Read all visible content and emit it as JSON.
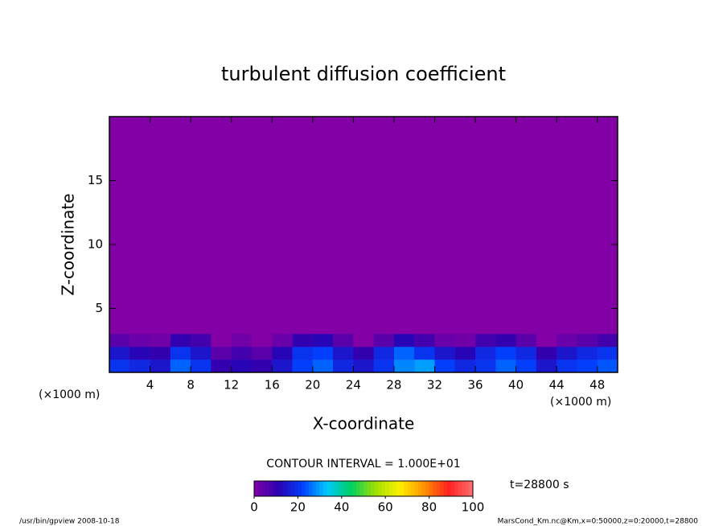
{
  "chart_data": {
    "type": "heatmap",
    "title": "turbulent diffusion coefficient",
    "xlabel": "X-coordinate",
    "ylabel": "Z-coordinate",
    "x_unit": "(×1000 m)",
    "y_unit": "(×1000 m)",
    "xlim": [
      0,
      50
    ],
    "ylim": [
      0,
      20
    ],
    "xticks": [
      4,
      8,
      12,
      16,
      20,
      24,
      28,
      32,
      36,
      40,
      44,
      48
    ],
    "yticks": [
      5,
      10,
      15
    ],
    "x": [
      1,
      3,
      5,
      7,
      9,
      11,
      13,
      15,
      17,
      19,
      21,
      23,
      25,
      27,
      29,
      31,
      33,
      35,
      37,
      39,
      41,
      43,
      45,
      47,
      49
    ],
    "y": [
      0.5,
      1.5,
      2.5
    ],
    "values": [
      [
        20,
        18,
        15,
        25,
        20,
        10,
        12,
        10,
        15,
        22,
        25,
        18,
        15,
        20,
        28,
        30,
        22,
        18,
        20,
        25,
        22,
        15,
        20,
        22,
        24
      ],
      [
        15,
        12,
        10,
        20,
        15,
        5,
        8,
        5,
        12,
        20,
        22,
        15,
        10,
        18,
        25,
        20,
        15,
        12,
        18,
        22,
        18,
        10,
        15,
        18,
        20
      ],
      [
        5,
        3,
        2,
        10,
        8,
        0,
        2,
        0,
        3,
        10,
        12,
        5,
        0,
        5,
        12,
        8,
        3,
        2,
        8,
        10,
        5,
        0,
        3,
        5,
        8
      ]
    ],
    "colormap": [
      "#8200a6",
      "#2a00b0",
      "#0040ff",
      "#00c8ff",
      "#00d060",
      "#a0e000",
      "#fff000",
      "#ff9000",
      "#ff2020",
      "#ff7070"
    ],
    "clim": [
      0,
      100
    ],
    "cticks": [
      0,
      20,
      40,
      60,
      80,
      100
    ],
    "contour_label": "CONTOUR INTERVAL = 1.000E+01",
    "time_label": "t=28800 s",
    "footer_left": "/usr/bin/gpview   2008-10-18",
    "footer_right": "MarsCond_Km.nc@Km,x=0:50000,z=0:20000,t=28800"
  }
}
